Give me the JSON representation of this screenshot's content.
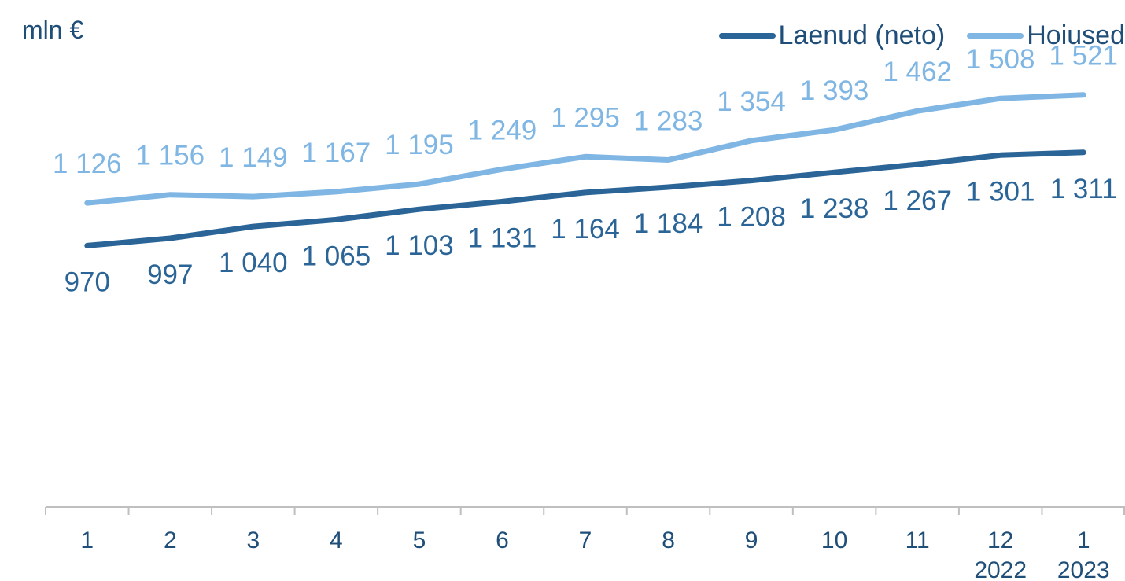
{
  "chart_data": {
    "type": "line",
    "ylabel": "mln €",
    "categories": [
      "1",
      "2",
      "3",
      "4",
      "5",
      "6",
      "7",
      "8",
      "9",
      "10",
      "11",
      "12",
      "1"
    ],
    "year_labels": {
      "11": "2022",
      "12": "2023"
    },
    "ylim": [
      0,
      1600
    ],
    "grid": false,
    "legend_position": "top-right",
    "series": [
      {
        "name": "Laenud (neto)",
        "color": "#2b6597",
        "values": [
          970,
          997,
          1040,
          1065,
          1103,
          1131,
          1164,
          1184,
          1208,
          1238,
          1267,
          1301,
          1311
        ],
        "labels": [
          "970",
          "997",
          "1 040",
          "1 065",
          "1 103",
          "1 131",
          "1 164",
          "1 184",
          "1 208",
          "1 238",
          "1 267",
          "1 301",
          "1 311"
        ],
        "label_position": "below"
      },
      {
        "name": "Hoiused",
        "color": "#7fb6e3",
        "values": [
          1126,
          1156,
          1149,
          1167,
          1195,
          1249,
          1295,
          1283,
          1354,
          1393,
          1462,
          1508,
          1521
        ],
        "labels": [
          "1 126",
          "1 156",
          "1 149",
          "1 167",
          "1 195",
          "1 249",
          "1 295",
          "1 283",
          "1 354",
          "1 393",
          "1 462",
          "1 508",
          "1 521"
        ],
        "label_position": "above"
      }
    ],
    "colors": {
      "axis": "#bfbfbf",
      "text": "#1f4e79"
    }
  }
}
